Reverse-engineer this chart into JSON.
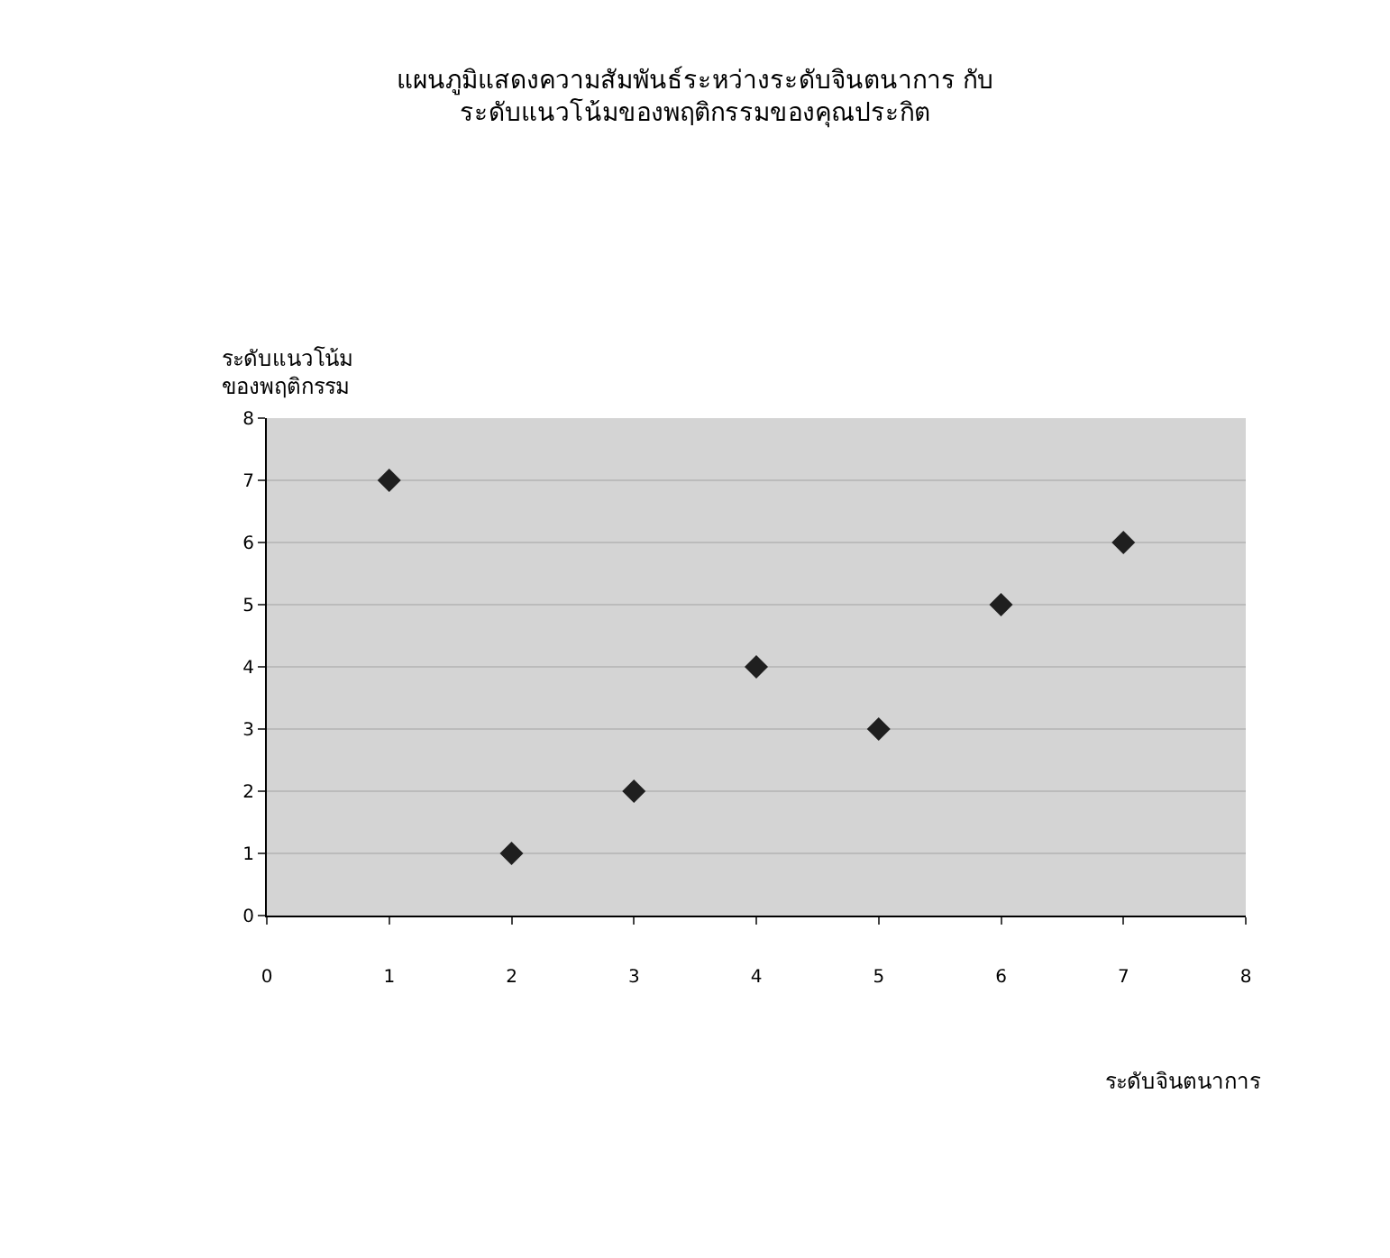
{
  "chart_data": {
    "type": "scatter",
    "title": "แผนภูมิแสดงความสัมพันธ์ระหว่างระดับจินตนาการ กับ\nระดับแนวโน้มของพฤติกรรมของคุณประกิต",
    "xlabel": "ระดับจินตนาการ",
    "ylabel": "ระดับแนวโน้ม\nของพฤติกรรม",
    "x": [
      1,
      2,
      3,
      4,
      5,
      6,
      7
    ],
    "series": [
      {
        "color": "#1f1f1f",
        "values": [
          7,
          1,
          2,
          4,
          3,
          5,
          6
        ]
      }
    ],
    "xlim": [
      0,
      8
    ],
    "xticks": [
      0,
      1,
      2,
      3,
      4,
      5,
      6,
      7,
      8
    ],
    "ylim": [
      0,
      8
    ],
    "yticks": [
      0,
      1,
      2,
      3,
      4,
      5,
      6,
      7,
      8
    ],
    "grid": "y",
    "marker": "diamond"
  }
}
